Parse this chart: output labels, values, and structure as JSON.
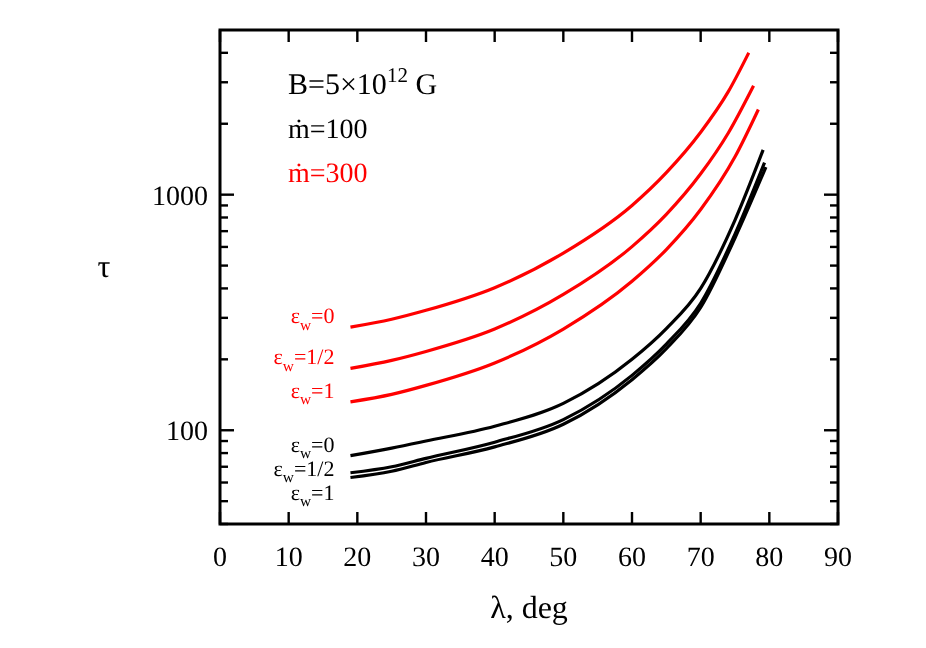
{
  "chart_data": {
    "type": "line",
    "xlabel": "λ, deg",
    "ylabel": "τ",
    "log": "y",
    "xlim": [
      0,
      90
    ],
    "ylim": [
      40,
      5000
    ],
    "xticks": [
      0,
      10,
      20,
      30,
      40,
      50,
      60,
      70,
      80,
      90
    ],
    "yticks": [
      {
        "value": 40,
        "label": null
      },
      {
        "value": 50,
        "label": null
      },
      {
        "value": 60,
        "label": null
      },
      {
        "value": 70,
        "label": null
      },
      {
        "value": 80,
        "label": null
      },
      {
        "value": 90,
        "label": null
      },
      100,
      {
        "value": 200,
        "label": null
      },
      {
        "value": 300,
        "label": null
      },
      {
        "value": 400,
        "label": null
      },
      {
        "value": 500,
        "label": null
      },
      {
        "value": 600,
        "label": null
      },
      {
        "value": 700,
        "label": null
      },
      {
        "value": 800,
        "label": null
      },
      {
        "value": 900,
        "label": null
      },
      1000,
      {
        "value": 2000,
        "label": null
      },
      {
        "value": 3000,
        "label": null
      },
      {
        "value": 4000,
        "label": null
      }
    ],
    "grid": false,
    "marker": "none",
    "line_style": "solid",
    "annotations": [
      "B=5×10$^{12}$ G",
      "ṁ=100",
      "ṁ=300"
    ],
    "series": [
      {
        "name": "ε$_{w}$=0",
        "color": "#ff0000",
        "x": [
          19,
          25,
          30,
          40,
          50,
          60,
          65,
          70,
          74,
          77
        ],
        "values": [
          274,
          296,
          323,
          403,
          565,
          900,
          1240,
          1840,
          2730,
          4000
        ]
      },
      {
        "name": "ε$_{w}$=1/2",
        "color": "#ff0000",
        "x": [
          19,
          25,
          30,
          40,
          50,
          60,
          65,
          70,
          74,
          77.7
        ],
        "values": [
          183,
          198,
          216,
          269,
          377,
          602,
          825,
          1226,
          1823,
          2900
        ]
      },
      {
        "name": "ε$_{w}$=1",
        "color": "#ff0000",
        "x": [
          19,
          25,
          30,
          40,
          50,
          60,
          65,
          70,
          75,
          78.4
        ],
        "values": [
          132,
          142,
          155,
          193,
          269,
          429,
          585,
          865,
          1448,
          2300
        ]
      },
      {
        "name": "ε$_{w}$=0",
        "color": "#000000",
        "x": [
          19,
          25,
          30,
          40,
          50,
          60,
          65,
          70,
          75,
          79.1
        ],
        "values": [
          78,
          84,
          90,
          104,
          130,
          200,
          270,
          400,
          780,
          1550
        ]
      },
      {
        "name": "ε$_{w}$=1/2",
        "color": "#000000",
        "x": [
          19,
          25,
          30,
          40,
          50,
          60,
          65,
          70,
          75,
          79.3
        ],
        "values": [
          66,
          70,
          76,
          89,
          111,
          171,
          232,
          346,
          680,
          1367
        ]
      },
      {
        "name": "ε$_{w}$=1",
        "color": "#000000",
        "x": [
          19,
          25,
          30,
          40,
          50,
          60,
          65,
          70,
          75,
          79.5
        ],
        "values": [
          63,
          67,
          73,
          85,
          106,
          164,
          222,
          332,
          655,
          1310
        ]
      }
    ]
  }
}
